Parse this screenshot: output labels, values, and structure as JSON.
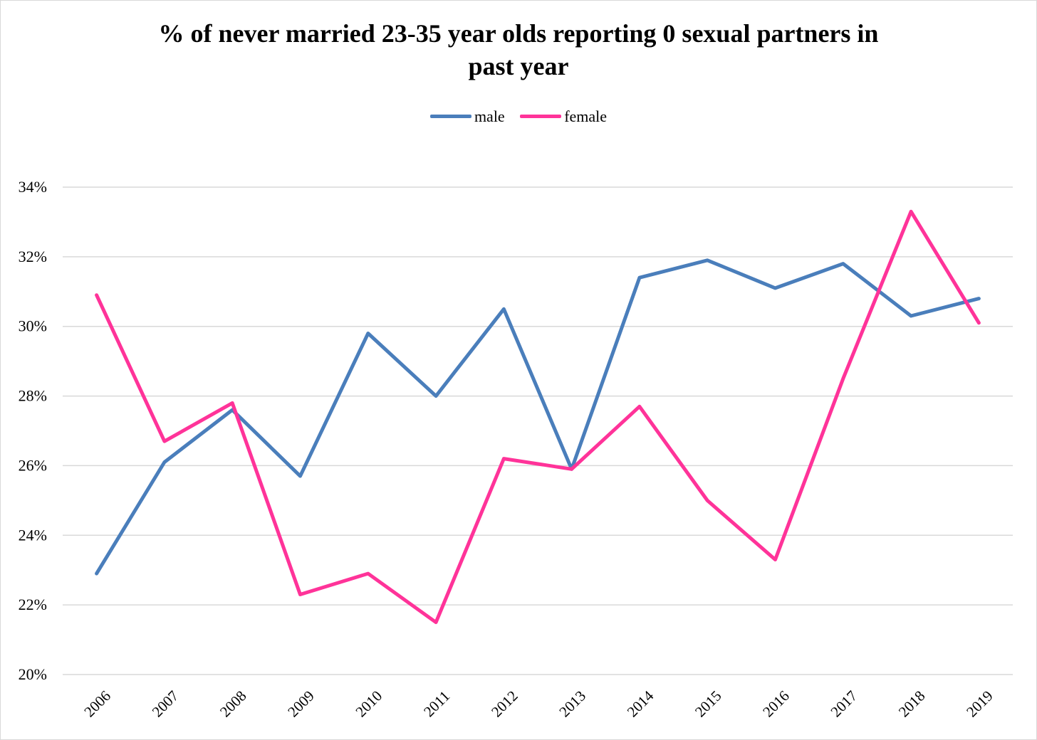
{
  "chart_data": {
    "type": "line",
    "title_lines": [
      "% of never married 23-35 year olds reporting 0 sexual partners in",
      "past year"
    ],
    "xlabel": "",
    "ylabel": "",
    "categories": [
      "2006",
      "2007",
      "2008",
      "2009",
      "2010",
      "2011",
      "2012",
      "2013",
      "2014",
      "2015",
      "2016",
      "2017",
      "2018",
      "2019"
    ],
    "ylim": [
      0.2,
      0.34
    ],
    "yticks": [
      0.2,
      0.22,
      0.24,
      0.26,
      0.28,
      0.3,
      0.32,
      0.34
    ],
    "ytick_labels": [
      "20%",
      "22%",
      "24%",
      "26%",
      "28%",
      "30%",
      "32%",
      "34%"
    ],
    "grid": true,
    "legend_position": "top-center",
    "series": [
      {
        "name": "male",
        "color": "#4a7ebb",
        "values": [
          0.229,
          0.261,
          0.276,
          0.257,
          0.298,
          0.28,
          0.305,
          0.259,
          0.314,
          0.319,
          0.311,
          0.318,
          0.303,
          0.308
        ]
      },
      {
        "name": "female",
        "color": "#ff3399",
        "values": [
          0.309,
          0.267,
          0.278,
          0.223,
          0.229,
          0.215,
          0.262,
          0.259,
          0.277,
          0.25,
          0.233,
          0.285,
          0.333,
          0.301
        ]
      }
    ]
  }
}
